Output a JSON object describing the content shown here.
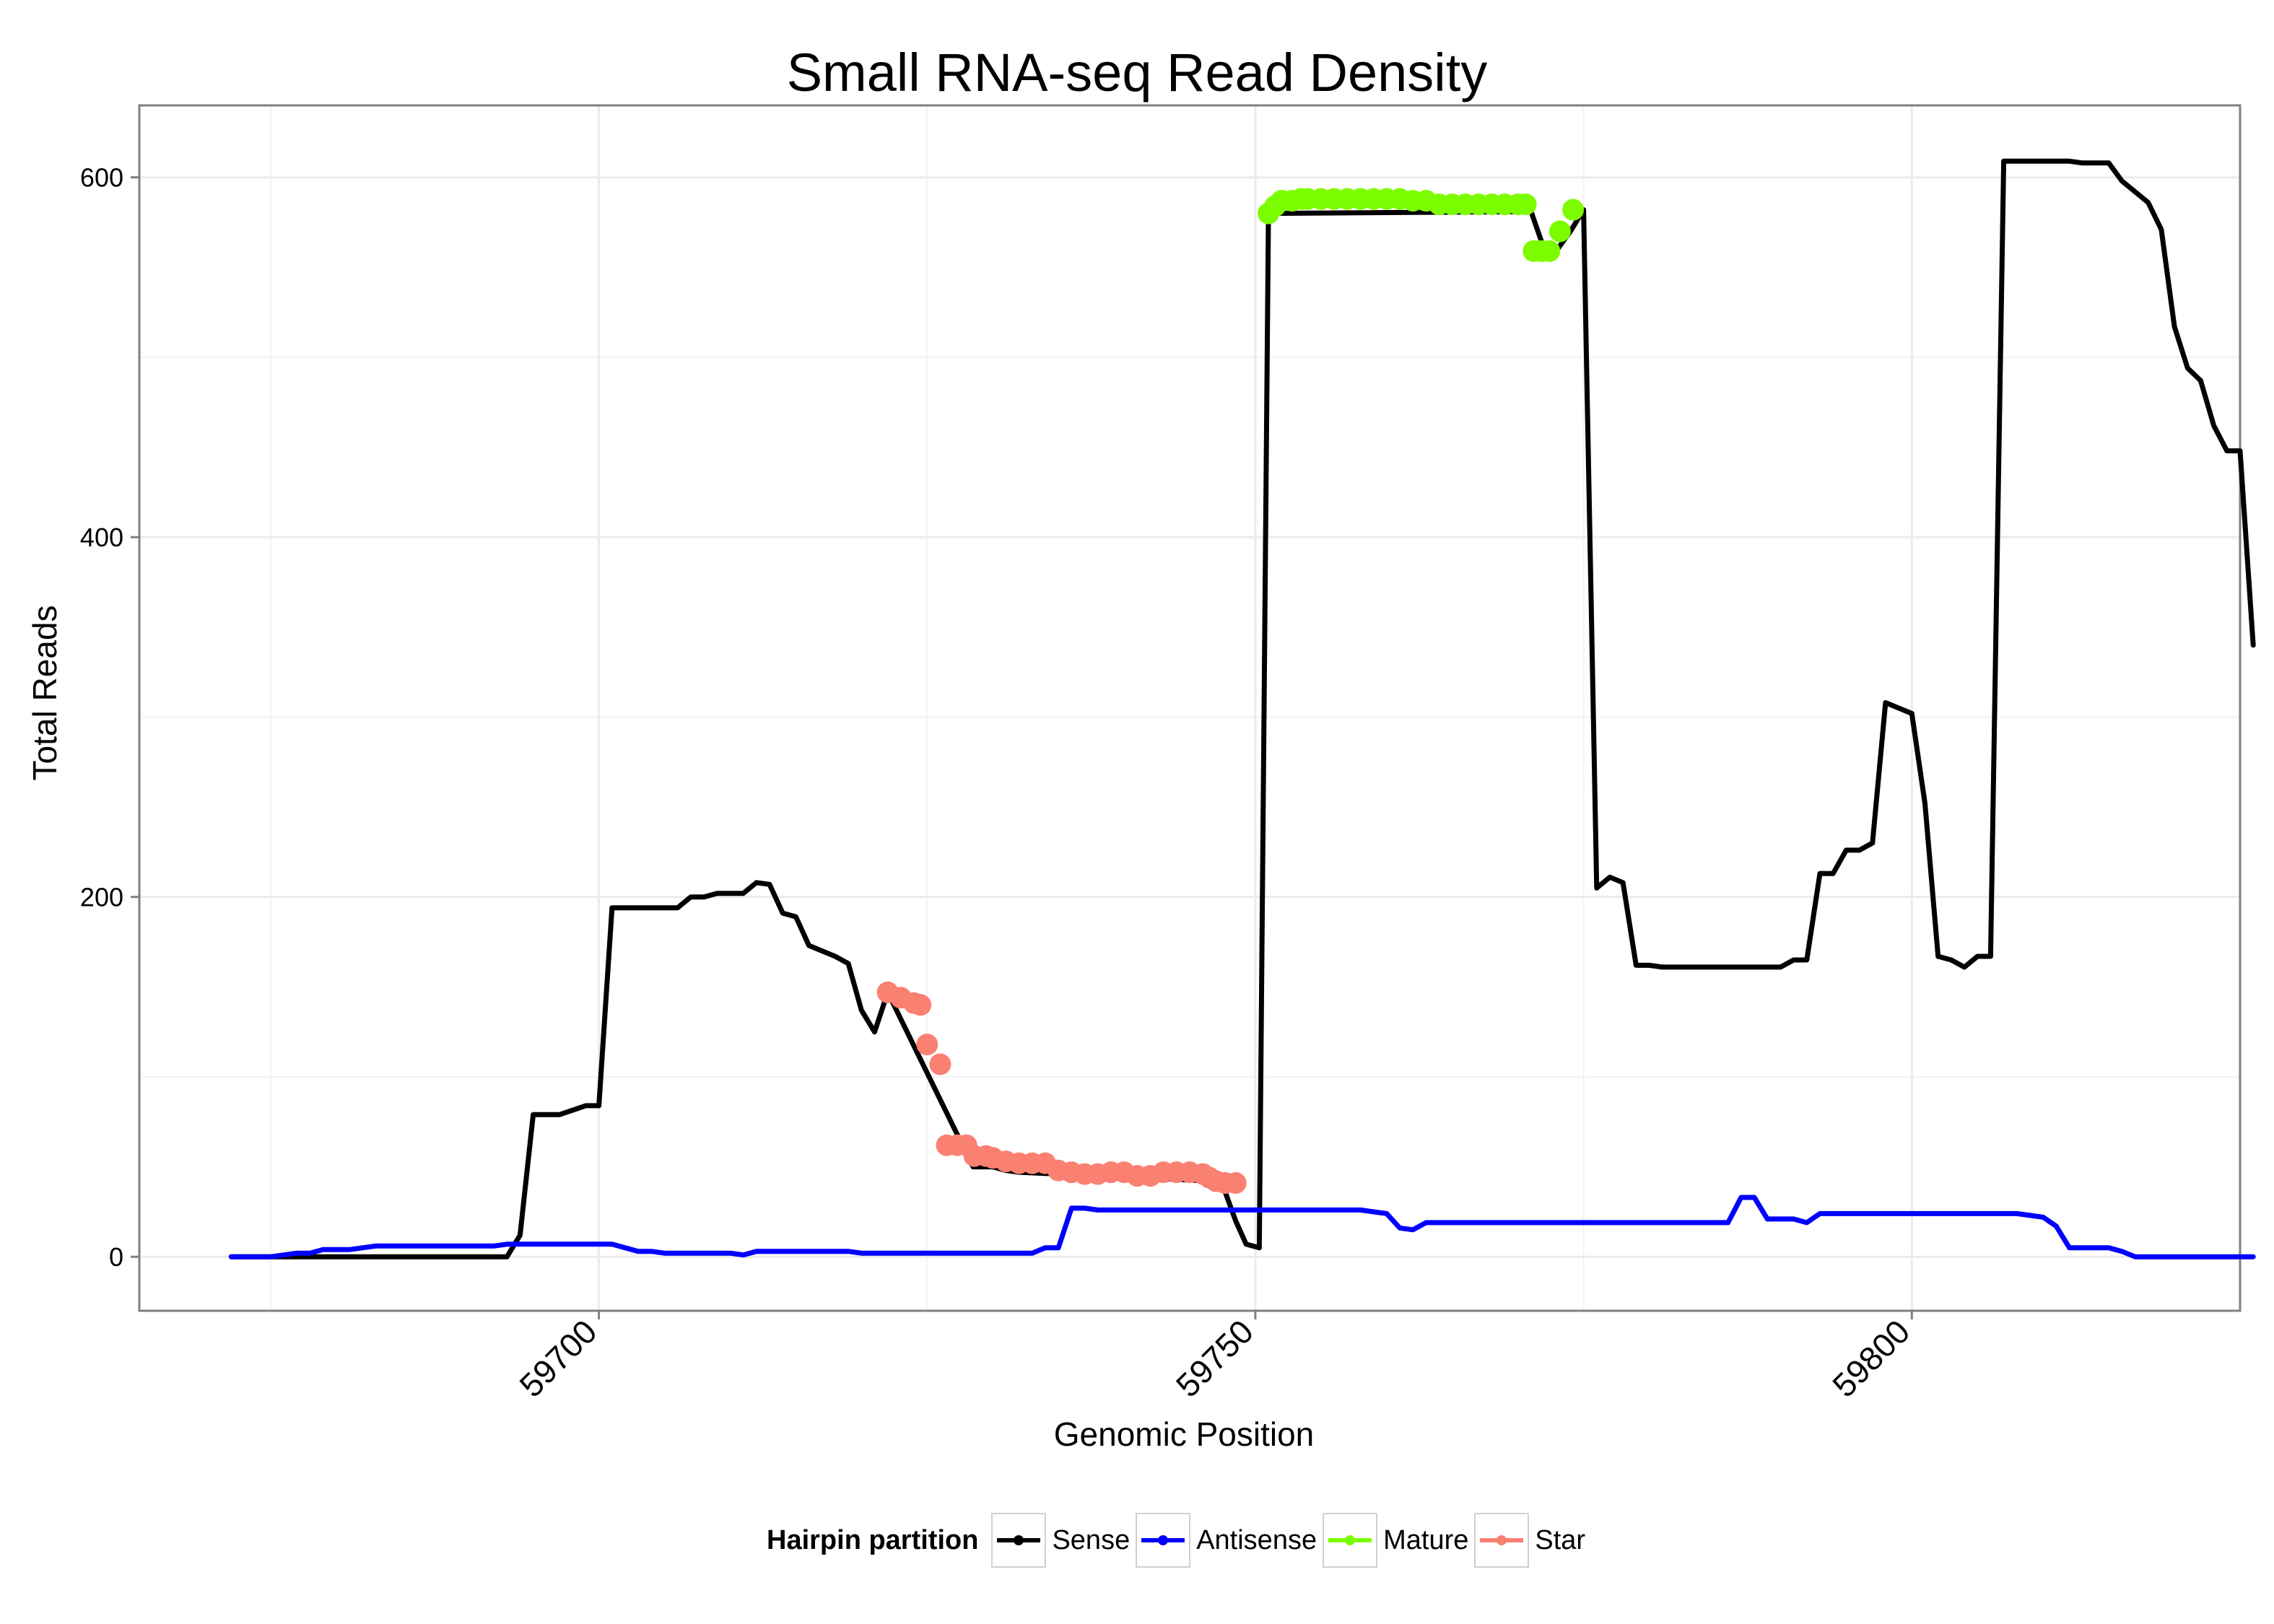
{
  "chart_data": {
    "type": "line",
    "title": "Small RNA-seq Read Density",
    "xlabel": "Genomic Position",
    "ylabel": "Total Reads",
    "xlim": [
      59665,
      59825
    ],
    "ylim": [
      -30,
      640
    ],
    "x_ticks": [
      59700,
      59750,
      59800
    ],
    "x_tick_labels": [
      "59700",
      "59750",
      "59800"
    ],
    "y_ticks": [
      0,
      200,
      400,
      600
    ],
    "y_tick_labels": [
      "0",
      "200",
      "400",
      "600"
    ],
    "grid": true,
    "legend": {
      "title": "Hairpin partition",
      "placement": "bottom",
      "entries": [
        {
          "label": "Sense",
          "color": "#000000"
        },
        {
          "label": "Antisense",
          "color": "#0000ff"
        },
        {
          "label": "Mature",
          "color": "#7cfc00"
        },
        {
          "label": "Star",
          "color": "#fa8072"
        }
      ]
    },
    "series": [
      {
        "name": "Sense",
        "color": "#000000",
        "style": "line",
        "points": [
          [
            59672,
            0
          ],
          [
            59674,
            0
          ],
          [
            59676,
            0
          ],
          [
            59678,
            0
          ],
          [
            59680,
            0
          ],
          [
            59682,
            0
          ],
          [
            59684,
            0
          ],
          [
            59686,
            0
          ],
          [
            59688,
            0
          ],
          [
            59690,
            0
          ],
          [
            59692,
            0
          ],
          [
            59693,
            0
          ],
          [
            59694,
            12
          ],
          [
            59695,
            79
          ],
          [
            59697,
            79
          ],
          [
            59699,
            84
          ],
          [
            59700,
            84
          ],
          [
            59701,
            194
          ],
          [
            59703,
            194
          ],
          [
            59705,
            194
          ],
          [
            59706,
            194
          ],
          [
            59707,
            200
          ],
          [
            59708,
            200
          ],
          [
            59709,
            202
          ],
          [
            59711,
            202
          ],
          [
            59712,
            208
          ],
          [
            59713,
            207
          ],
          [
            59714,
            191
          ],
          [
            59715,
            189
          ],
          [
            59716,
            173
          ],
          [
            59717,
            170
          ],
          [
            59718,
            167
          ],
          [
            59719,
            163
          ],
          [
            59720,
            137
          ],
          [
            59721,
            125
          ],
          [
            59722,
            147
          ],
          [
            59728.5,
            50
          ],
          [
            59730,
            50
          ],
          [
            59731,
            48
          ],
          [
            59732,
            47
          ],
          [
            59747,
            42
          ],
          [
            59747.5,
            40
          ],
          [
            59748.5,
            20
          ],
          [
            59749.3,
            7
          ],
          [
            59750.3,
            5
          ],
          [
            59751,
            580
          ],
          [
            59771,
            581
          ],
          [
            59772,
            560
          ],
          [
            59773,
            560
          ],
          [
            59774,
            570
          ],
          [
            59775,
            582
          ],
          [
            59776,
            205
          ],
          [
            59777,
            211
          ],
          [
            59778,
            208
          ],
          [
            59779,
            162
          ],
          [
            59780,
            162
          ],
          [
            59781,
            161
          ],
          [
            59788,
            161
          ],
          [
            59790,
            161
          ],
          [
            59791,
            165
          ],
          [
            59792,
            165
          ],
          [
            59793,
            213
          ],
          [
            59794,
            213
          ],
          [
            59795,
            226
          ],
          [
            59796,
            226
          ],
          [
            59797,
            230
          ],
          [
            59798,
            308
          ],
          [
            59800,
            302
          ],
          [
            59801,
            252
          ],
          [
            59802,
            167
          ],
          [
            59803,
            165
          ],
          [
            59804,
            161
          ],
          [
            59805,
            167
          ],
          [
            59806,
            167
          ],
          [
            59807,
            609
          ],
          [
            59812,
            609
          ],
          [
            59813,
            608
          ],
          [
            59815,
            608
          ],
          [
            59816,
            598
          ],
          [
            59818,
            586
          ],
          [
            59819,
            571
          ],
          [
            59820,
            517
          ],
          [
            59821,
            494
          ],
          [
            59822,
            487
          ],
          [
            59823,
            462
          ],
          [
            59824,
            448
          ],
          [
            59825,
            448
          ],
          [
            59826,
            340
          ]
        ]
      },
      {
        "name": "Antisense",
        "color": "#0000ff",
        "style": "line",
        "points": [
          [
            59672,
            0
          ],
          [
            59675,
            0
          ],
          [
            59677,
            2
          ],
          [
            59678,
            2
          ],
          [
            59679,
            4
          ],
          [
            59680,
            4
          ],
          [
            59681,
            4
          ],
          [
            59683,
            6
          ],
          [
            59690,
            6
          ],
          [
            59692,
            6
          ],
          [
            59693,
            7
          ],
          [
            59700,
            7
          ],
          [
            59701,
            7
          ],
          [
            59702,
            5
          ],
          [
            59703,
            3
          ],
          [
            59704,
            3
          ],
          [
            59705,
            2
          ],
          [
            59710,
            2
          ],
          [
            59711,
            1
          ],
          [
            59712,
            3
          ],
          [
            59718,
            3
          ],
          [
            59719,
            3
          ],
          [
            59720,
            2
          ],
          [
            59732,
            2
          ],
          [
            59733,
            2
          ],
          [
            59734,
            5
          ],
          [
            59735,
            5
          ],
          [
            59736,
            27
          ],
          [
            59737,
            27
          ],
          [
            59738,
            26
          ],
          [
            59753,
            26
          ],
          [
            59754,
            26
          ],
          [
            59758,
            26
          ],
          [
            59760,
            24
          ],
          [
            59761,
            16
          ],
          [
            59762,
            15
          ],
          [
            59763,
            19
          ],
          [
            59785,
            19
          ],
          [
            59786,
            19
          ],
          [
            59787,
            33
          ],
          [
            59788,
            33
          ],
          [
            59789,
            21
          ],
          [
            59791,
            21
          ],
          [
            59792,
            19
          ],
          [
            59793,
            24
          ],
          [
            59808,
            24
          ],
          [
            59809,
            23
          ],
          [
            59810,
            22
          ],
          [
            59811,
            17
          ],
          [
            59812,
            5
          ],
          [
            59815,
            5
          ],
          [
            59816,
            3
          ],
          [
            59817,
            0
          ],
          [
            59826,
            0
          ]
        ]
      },
      {
        "name": "Mature",
        "color": "#7cfc00",
        "style": "points",
        "points": [
          [
            59751,
            580
          ],
          [
            59751.5,
            584
          ],
          [
            59752,
            587
          ],
          [
            59752.8,
            587
          ],
          [
            59753.5,
            588
          ],
          [
            59754,
            588
          ],
          [
            59755,
            588
          ],
          [
            59756,
            588
          ],
          [
            59757,
            588
          ],
          [
            59758,
            588
          ],
          [
            59759,
            588
          ],
          [
            59760,
            588
          ],
          [
            59761,
            588
          ],
          [
            59762,
            587
          ],
          [
            59763,
            587
          ],
          [
            59764,
            585
          ],
          [
            59765,
            585
          ],
          [
            59766,
            585
          ],
          [
            59767,
            585
          ],
          [
            59768,
            585
          ],
          [
            59769,
            585
          ],
          [
            59770,
            585
          ],
          [
            59770.6,
            585
          ],
          [
            59771.2,
            559
          ],
          [
            59771.8,
            559
          ],
          [
            59772.4,
            559
          ],
          [
            59773.2,
            570
          ],
          [
            59774.2,
            582
          ]
        ]
      },
      {
        "name": "Star",
        "color": "#fa8072",
        "style": "points",
        "points": [
          [
            59722,
            147
          ],
          [
            59723,
            144
          ],
          [
            59724,
            141
          ],
          [
            59724.5,
            140
          ],
          [
            59725,
            118
          ],
          [
            59726,
            107
          ],
          [
            59726.5,
            62
          ],
          [
            59727.3,
            62
          ],
          [
            59728,
            62
          ],
          [
            59728.6,
            56
          ],
          [
            59729.5,
            56
          ],
          [
            59730,
            55
          ],
          [
            59731,
            53
          ],
          [
            59732,
            52
          ],
          [
            59733,
            52
          ],
          [
            59734,
            52
          ],
          [
            59735,
            48
          ],
          [
            59736,
            47
          ],
          [
            59737,
            46
          ],
          [
            59738,
            46
          ],
          [
            59739,
            47
          ],
          [
            59740,
            47
          ],
          [
            59741,
            45
          ],
          [
            59742,
            45
          ],
          [
            59743,
            47
          ],
          [
            59744,
            47
          ],
          [
            59745,
            47
          ],
          [
            59746,
            46
          ],
          [
            59746.5,
            44
          ],
          [
            59747,
            42
          ],
          [
            59747.7,
            41
          ],
          [
            59748.5,
            41
          ]
        ]
      }
    ]
  }
}
